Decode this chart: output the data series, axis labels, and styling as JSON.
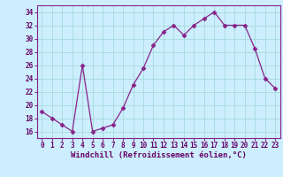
{
  "x": [
    0,
    1,
    2,
    3,
    4,
    5,
    6,
    7,
    8,
    9,
    10,
    11,
    12,
    13,
    14,
    15,
    16,
    17,
    18,
    19,
    20,
    21,
    22,
    23
  ],
  "y": [
    19,
    18,
    17,
    16,
    26,
    16,
    16.5,
    17,
    19.5,
    23,
    25.5,
    29,
    31,
    32,
    30.5,
    32,
    33,
    34,
    32,
    32,
    32,
    28.5,
    24,
    22.5
  ],
  "line_color": "#882288",
  "marker": "D",
  "marker_size": 2.5,
  "bg_color": "#cceeff",
  "grid_color": "#aadddd",
  "xlabel": "Windchill (Refroidissement éolien,°C)",
  "xlabel_color": "#660066",
  "xlabel_fontsize": 6.5,
  "tick_color": "#660066",
  "tick_fontsize": 5.5,
  "ytick_values": [
    16,
    18,
    20,
    22,
    24,
    26,
    28,
    30,
    32,
    34
  ],
  "xtick_values": [
    0,
    1,
    2,
    3,
    4,
    5,
    6,
    7,
    8,
    9,
    10,
    11,
    12,
    13,
    14,
    15,
    16,
    17,
    18,
    19,
    20,
    21,
    22,
    23
  ],
  "ylim": [
    15.0,
    35.0
  ],
  "xlim": [
    -0.5,
    23.5
  ],
  "axis_color": "#882288"
}
